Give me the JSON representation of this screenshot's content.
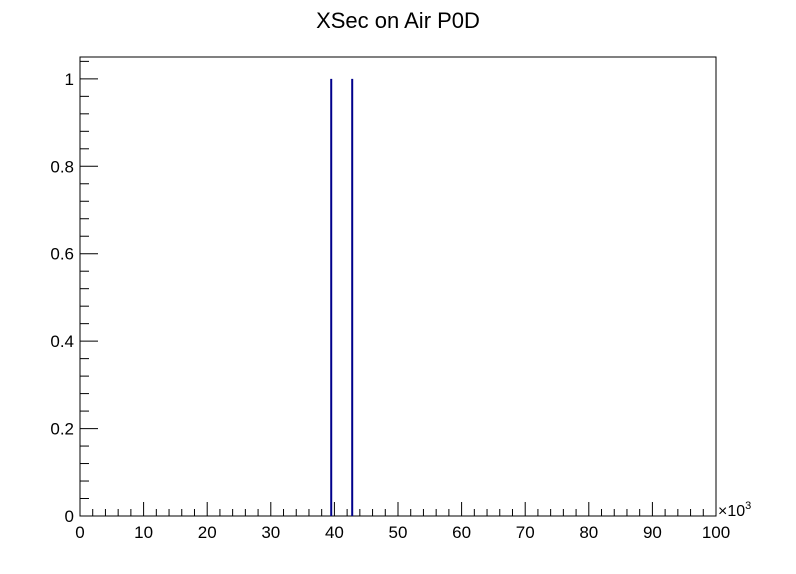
{
  "chart_data": {
    "type": "bar",
    "title": "XSec on Air P0D",
    "xlabel": "",
    "ylabel": "",
    "x_scale_label": "×10",
    "x_scale_exponent": "3",
    "xlim": [
      0,
      100
    ],
    "ylim": [
      0,
      1.05
    ],
    "x_ticks": [
      0,
      10,
      20,
      30,
      40,
      50,
      60,
      70,
      80,
      90,
      100
    ],
    "x_tick_labels": [
      "0",
      "10",
      "20",
      "30",
      "40",
      "50",
      "60",
      "70",
      "80",
      "90",
      "100"
    ],
    "y_ticks": [
      0,
      0.2,
      0.4,
      0.6,
      0.8,
      1
    ],
    "y_tick_labels": [
      "0",
      "0.2",
      "0.4",
      "0.6",
      "0.8",
      "1"
    ],
    "series": [
      {
        "x": [
          39.5,
          42.8
        ],
        "values": [
          1,
          1
        ]
      }
    ],
    "grid": false,
    "line_color": "#00008b"
  }
}
